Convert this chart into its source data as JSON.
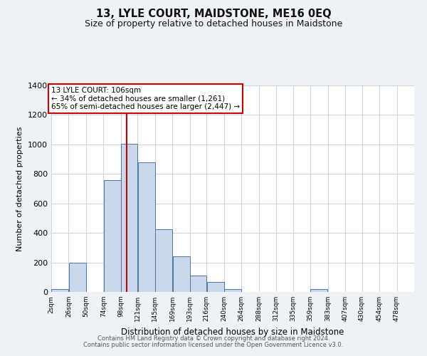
{
  "title": "13, LYLE COURT, MAIDSTONE, ME16 0EQ",
  "subtitle": "Size of property relative to detached houses in Maidstone",
  "xlabel": "Distribution of detached houses by size in Maidstone",
  "ylabel": "Number of detached properties",
  "bar_left_edges": [
    2,
    26,
    50,
    74,
    98,
    121,
    145,
    169,
    193,
    216,
    240,
    264,
    288,
    312,
    335,
    359,
    383,
    407,
    430,
    454
  ],
  "bar_widths": [
    24,
    24,
    24,
    24,
    23,
    24,
    24,
    24,
    23,
    24,
    24,
    24,
    24,
    23,
    24,
    24,
    24,
    23,
    24,
    24
  ],
  "bar_heights": [
    20,
    200,
    0,
    760,
    1005,
    880,
    425,
    240,
    110,
    70,
    20,
    0,
    0,
    0,
    0,
    20,
    0,
    0,
    0,
    0
  ],
  "bar_color": "#c8d8ea",
  "bar_edge_color": "#4477aa",
  "tick_labels": [
    "2sqm",
    "26sqm",
    "50sqm",
    "74sqm",
    "98sqm",
    "121sqm",
    "145sqm",
    "169sqm",
    "193sqm",
    "216sqm",
    "240sqm",
    "264sqm",
    "288sqm",
    "312sqm",
    "335sqm",
    "359sqm",
    "383sqm",
    "407sqm",
    "430sqm",
    "454sqm",
    "478sqm"
  ],
  "ylim": [
    0,
    1400
  ],
  "yticks": [
    0,
    200,
    400,
    600,
    800,
    1000,
    1200,
    1400
  ],
  "vline_x": 106,
  "vline_color": "#cc0000",
  "annotation_line1": "13 LYLE COURT: 106sqm",
  "annotation_line2": "← 34% of detached houses are smaller (1,261)",
  "annotation_line3": "65% of semi-detached houses are larger (2,447) →",
  "footer1": "Contains HM Land Registry data © Crown copyright and database right 2024.",
  "footer2": "Contains public sector information licensed under the Open Government Licence v3.0.",
  "bg_color": "#eef2f7",
  "plot_bg_color": "#ffffff",
  "grid_color": "#c8d4e0"
}
